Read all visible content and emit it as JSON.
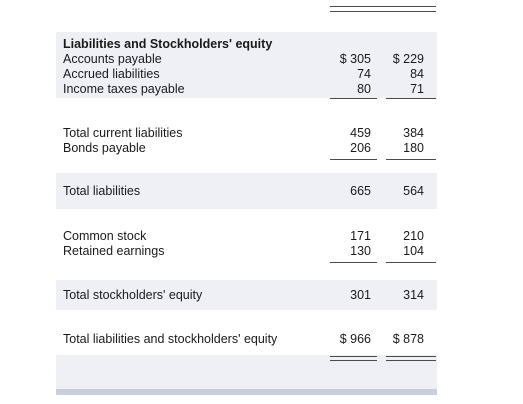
{
  "statement": {
    "heading": "Liabilities and Stockholders' equity",
    "current_items": [
      {
        "label": "Accounts payable",
        "y1": "$ 305",
        "y2": "$ 229"
      },
      {
        "label": "Accrued liabilities",
        "y1": "74",
        "y2": "84"
      },
      {
        "label": "Income taxes payable",
        "y1": "80",
        "y2": "71"
      }
    ],
    "total_current": {
      "label": "Total current liabilities",
      "y1": "459",
      "y2": "384"
    },
    "bonds": {
      "label": "Bonds payable",
      "y1": "206",
      "y2": "180"
    },
    "total_liabilities": {
      "label": "Total liabilities",
      "y1": "665",
      "y2": "564"
    },
    "common_stock": {
      "label": "Common stock",
      "y1": "171",
      "y2": "210"
    },
    "retained_earnings": {
      "label": "Retained earnings",
      "y1": "130",
      "y2": "104"
    },
    "total_equity": {
      "label": "Total stockholders' equity",
      "y1": "301",
      "y2": "314"
    },
    "grand_total": {
      "label": "Total liabilities and stockholders' equity",
      "y1": "$ 966",
      "y2": "$ 878"
    }
  },
  "colors": {
    "band": "#eef0f6",
    "rule": "#4a4a4a",
    "text": "#1a1a1a",
    "strip": "#c9cedf"
  }
}
